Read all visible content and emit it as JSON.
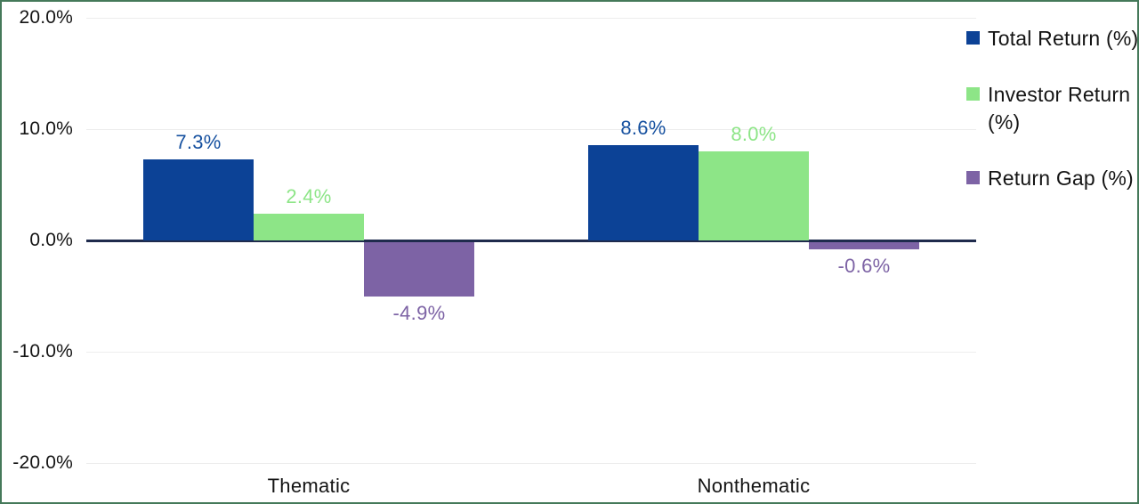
{
  "chart_data": {
    "type": "bar",
    "categories": [
      "Thematic",
      "Nonthematic"
    ],
    "series": [
      {
        "name": "Total Return (%)",
        "color": "#0c4296",
        "label_color": "#15509f",
        "values": [
          7.3,
          8.6
        ],
        "labels": [
          "7.3%",
          "8.6%"
        ]
      },
      {
        "name": "Investor Return (%)",
        "color": "#8de587",
        "label_color": "#8de587",
        "values": [
          2.4,
          8.0
        ],
        "labels": [
          "2.4%",
          "8.0%"
        ]
      },
      {
        "name": "Return Gap (%)",
        "color": "#7d63a5",
        "label_color": "#7d63a5",
        "values": [
          -4.9,
          -0.6
        ],
        "labels": [
          "-4.9%",
          "-0.6%"
        ]
      }
    ],
    "y_axis": {
      "ticks": [
        "20.0%",
        "10.0%",
        "0.0%",
        "-10.0%",
        "-20.0%"
      ],
      "tick_values": [
        20,
        10,
        0,
        -10,
        -20
      ],
      "min": -20,
      "max": 20
    },
    "grid": true,
    "legend_position": "right",
    "title": "",
    "xlabel": "",
    "ylabel": ""
  },
  "frame": {
    "border_color": "#45795a",
    "zero_line_color": "#1f2b4d",
    "gridline_color": "#ededed"
  }
}
